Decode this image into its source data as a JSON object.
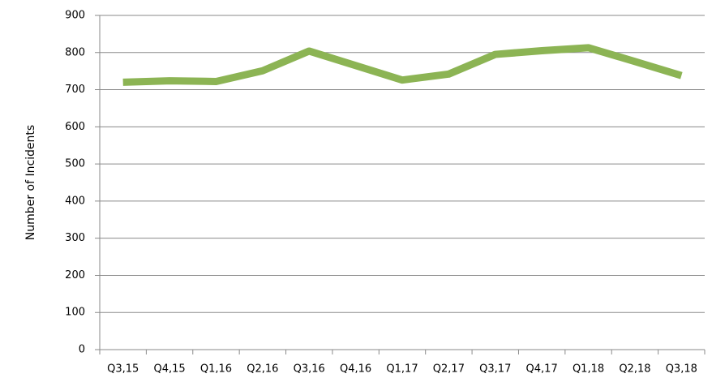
{
  "chart_data": {
    "type": "line",
    "y_label": "Number of Incidents",
    "categories": [
      "Q3,15",
      "Q4,15",
      "Q1,16",
      "Q2,16",
      "Q3,16",
      "Q4,16",
      "Q1,17",
      "Q2,17",
      "Q3,17",
      "Q4,17",
      "Q1,18",
      "Q2,18",
      "Q3,18"
    ],
    "values": [
      720,
      724,
      722,
      751,
      804,
      765,
      726,
      742,
      795,
      805,
      813,
      776,
      738
    ],
    "color": "#8cb454",
    "ylim": [
      0,
      900
    ],
    "yticks": [
      0,
      100,
      200,
      300,
      400,
      500,
      600,
      700,
      800,
      900
    ],
    "grid": true
  }
}
